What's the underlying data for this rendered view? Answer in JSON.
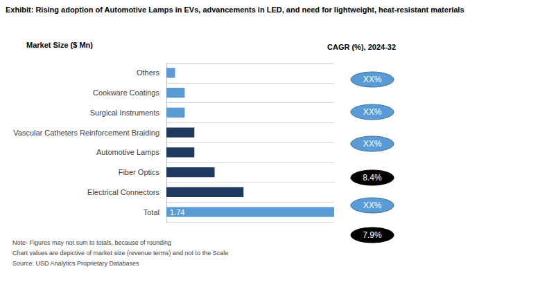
{
  "chart_data": {
    "type": "bar",
    "title": "Exhibit: Rising adoption of Automotive Lamps in EVs, advancements in LED, and need for lightweight, heat-resistant materials",
    "subtitle": "Market Size ($ Mn)",
    "orientation": "horizontal",
    "categories": [
      "Others",
      "Cookware Coatings",
      "Surgical Instruments",
      "Vascular Catheters Reinforcement Braiding",
      "Automotive Lamps",
      "Fiber Optics",
      "Electrical Connectors",
      "Total"
    ],
    "values": [
      0.09,
      0.19,
      0.19,
      0.29,
      0.29,
      0.5,
      0.8,
      1.74
    ],
    "value_labels": [
      null,
      null,
      null,
      null,
      null,
      null,
      null,
      "1.74"
    ],
    "colors": [
      "#5b9bd5",
      "#5b9bd5",
      "#5b9bd5",
      "#1f3a5f",
      "#1f3a5f",
      "#1f3a5f",
      "#1f3a5f",
      "#5b9bd5"
    ],
    "xlim": [
      0,
      1.74
    ],
    "tick_labels": "y",
    "grid": true,
    "annotations": {
      "title": "CAGR (%), 2024-32",
      "labels": [
        "XX%",
        "XX%",
        "XX%",
        "8.4%",
        "XX%",
        "7.9%"
      ],
      "colors": [
        "#5b9bd5",
        "#5b9bd5",
        "#5b9bd5",
        "#000000",
        "#5b9bd5",
        "#000000"
      ]
    },
    "notes": [
      "Note- Figures may not sum to totals, because of rounding",
      "Chart values are depictive of market size (revenue terms) and not to the Scale",
      "Source: USD Analytics Proprietary Databases"
    ]
  }
}
